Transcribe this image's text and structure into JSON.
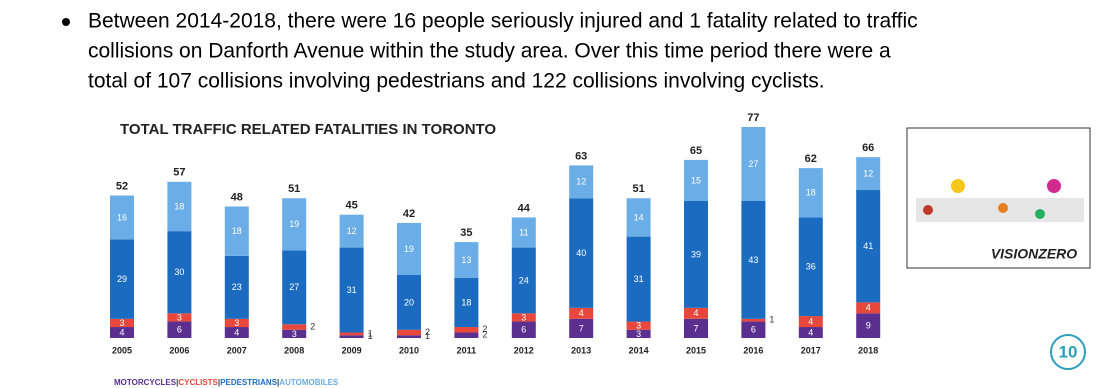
{
  "bullet_lines": [
    "Between 2014-2018, there were 16 people seriously injured and 1 fatality related to traffic",
    "collisions on Danforth Avenue within the study area. Over this time period there were a",
    "total of 107 collisions involving pedestrians and 122 collisions involving cyclists."
  ],
  "chart_data": {
    "type": "stacked_bar",
    "title": "TOTAL TRAFFIC RELATED FATALITIES IN TORONTO",
    "categories": [
      "2005",
      "2006",
      "2007",
      "2008",
      "2009",
      "2010",
      "2011",
      "2012",
      "2013",
      "2014",
      "2015",
      "2016",
      "2017",
      "2018"
    ],
    "series": [
      {
        "name": "MOTORCYCLES",
        "color": "#5a2f8f",
        "values": [
          4,
          6,
          4,
          3,
          1,
          1,
          2,
          6,
          7,
          3,
          7,
          6,
          4,
          9
        ]
      },
      {
        "name": "CYCLISTS",
        "color": "#e8473b",
        "values": [
          3,
          3,
          3,
          2,
          1,
          2,
          2,
          3,
          4,
          3,
          4,
          1,
          4,
          4
        ]
      },
      {
        "name": "PEDESTRIANS",
        "color": "#1b6cc1",
        "values": [
          29,
          30,
          23,
          27,
          31,
          20,
          18,
          24,
          40,
          31,
          39,
          43,
          36,
          41
        ]
      },
      {
        "name": "AUTOMOBILES",
        "color": "#6badE6",
        "values": [
          16,
          18,
          18,
          19,
          12,
          19,
          13,
          11,
          12,
          14,
          15,
          27,
          18,
          12
        ]
      }
    ],
    "totals": [
      52,
      57,
      48,
      51,
      45,
      42,
      35,
      44,
      63,
      51,
      65,
      77,
      62,
      66
    ],
    "legend_separator": "|"
  },
  "thumbnail": {
    "logo": "VISIONZERO"
  },
  "slide_number": "10"
}
